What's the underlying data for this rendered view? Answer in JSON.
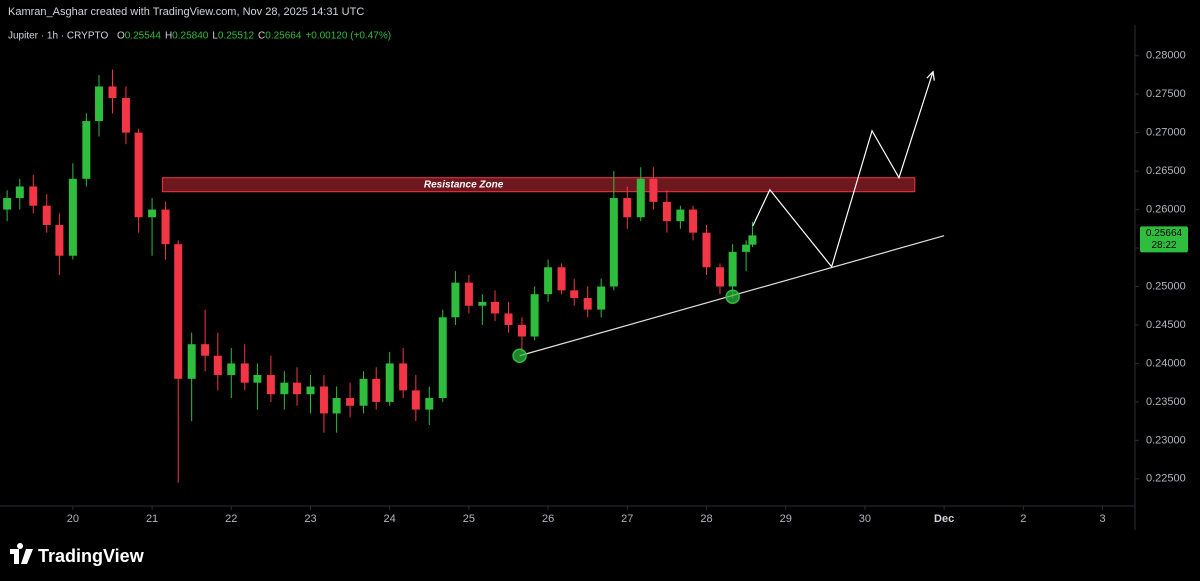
{
  "chart_data": {
    "type": "candlestick",
    "attribution": "Kamran_Asghar created with TradingView.com, Nov 28, 2025 14:31 UTC",
    "symbol": "Jupiter · 1h · CRYPTO",
    "ohlc_header": [
      {
        "label": "O",
        "value": "0.25544"
      },
      {
        "label": "H",
        "value": "0.25840"
      },
      {
        "label": "L",
        "value": "0.25512"
      },
      {
        "label": "C",
        "value": "0.25664"
      }
    ],
    "change": "+0.00120 (+0.47%)",
    "up_color": "#2ebd3c",
    "down_color": "#f23645",
    "x": [
      19.17,
      19.33,
      19.5,
      19.67,
      19.83,
      20.0,
      20.17,
      20.33,
      20.5,
      20.67,
      20.83,
      21.0,
      21.17,
      21.33,
      21.5,
      21.67,
      21.83,
      22.0,
      22.17,
      22.33,
      22.5,
      22.67,
      22.83,
      23.0,
      23.17,
      23.33,
      23.5,
      23.67,
      23.83,
      24.0,
      24.17,
      24.33,
      24.5,
      24.67,
      24.83,
      25.0,
      25.17,
      25.33,
      25.5,
      25.67,
      25.83,
      26.0,
      26.17,
      26.33,
      26.5,
      26.67,
      26.83,
      27.0,
      27.17,
      27.33,
      27.5,
      27.67,
      27.83,
      28.0,
      28.17,
      28.33,
      28.5,
      28.58
    ],
    "open": [
      0.26,
      0.2615,
      0.263,
      0.2605,
      0.258,
      0.254,
      0.264,
      0.2715,
      0.276,
      0.2745,
      0.27,
      0.259,
      0.26,
      0.2555,
      0.238,
      0.2425,
      0.241,
      0.2385,
      0.24,
      0.2375,
      0.2385,
      0.236,
      0.2375,
      0.236,
      0.237,
      0.2335,
      0.2355,
      0.2345,
      0.238,
      0.235,
      0.24,
      0.2365,
      0.234,
      0.2355,
      0.246,
      0.2505,
      0.2475,
      0.248,
      0.2465,
      0.245,
      0.2435,
      0.249,
      0.2525,
      0.2495,
      0.2485,
      0.247,
      0.25,
      0.2615,
      0.259,
      0.264,
      0.261,
      0.2585,
      0.26,
      0.257,
      0.2525,
      0.25,
      0.2545,
      0.25544
    ],
    "high": [
      0.2625,
      0.264,
      0.2645,
      0.262,
      0.2595,
      0.266,
      0.2725,
      0.2775,
      0.2782,
      0.276,
      0.2705,
      0.2615,
      0.261,
      0.256,
      0.244,
      0.247,
      0.244,
      0.242,
      0.2425,
      0.24,
      0.241,
      0.239,
      0.2395,
      0.2385,
      0.2385,
      0.237,
      0.2375,
      0.239,
      0.2395,
      0.2415,
      0.242,
      0.2385,
      0.237,
      0.247,
      0.252,
      0.2515,
      0.249,
      0.2495,
      0.248,
      0.246,
      0.25,
      0.2535,
      0.253,
      0.251,
      0.25,
      0.251,
      0.265,
      0.263,
      0.2655,
      0.2655,
      0.2625,
      0.2605,
      0.2605,
      0.258,
      0.253,
      0.2555,
      0.256,
      0.2584
    ],
    "low": [
      0.2585,
      0.26,
      0.2595,
      0.257,
      0.2515,
      0.2535,
      0.263,
      0.2695,
      0.2725,
      0.2685,
      0.257,
      0.254,
      0.2535,
      0.2245,
      0.2325,
      0.239,
      0.2365,
      0.2355,
      0.2365,
      0.234,
      0.235,
      0.234,
      0.2345,
      0.2335,
      0.231,
      0.231,
      0.233,
      0.2335,
      0.234,
      0.2345,
      0.2355,
      0.2325,
      0.232,
      0.235,
      0.245,
      0.2465,
      0.245,
      0.2455,
      0.244,
      0.2415,
      0.243,
      0.248,
      0.249,
      0.2475,
      0.246,
      0.246,
      0.2495,
      0.2575,
      0.2585,
      0.26,
      0.257,
      0.2575,
      0.256,
      0.2515,
      0.249,
      0.2485,
      0.252,
      0.25512
    ],
    "close": [
      0.2615,
      0.263,
      0.2605,
      0.258,
      0.254,
      0.264,
      0.2715,
      0.276,
      0.2745,
      0.27,
      0.259,
      0.26,
      0.2555,
      0.238,
      0.2425,
      0.241,
      0.2385,
      0.24,
      0.2375,
      0.2385,
      0.236,
      0.2375,
      0.236,
      0.237,
      0.2335,
      0.2355,
      0.2345,
      0.238,
      0.235,
      0.24,
      0.2365,
      0.234,
      0.2355,
      0.246,
      0.2505,
      0.2475,
      0.248,
      0.2465,
      0.245,
      0.2435,
      0.249,
      0.2525,
      0.2495,
      0.2485,
      0.247,
      0.25,
      0.2615,
      0.259,
      0.264,
      0.261,
      0.2585,
      0.26,
      0.257,
      0.2525,
      0.25,
      0.2545,
      0.25544,
      0.25664
    ],
    "countdown": "28:22",
    "xlim": [
      19.08,
      33.41
    ],
    "xticks": [
      20,
      21,
      22,
      23,
      24,
      25,
      26,
      27,
      28,
      29,
      30,
      {
        "value": 31,
        "label": "Dec"
      },
      {
        "value": 32,
        "label": "2"
      },
      {
        "value": 33,
        "label": "3"
      }
    ],
    "ylim": [
      0.2216,
      0.2836
    ],
    "yticks": [
      {
        "value": 0.28,
        "label": "0.28000"
      },
      {
        "value": 0.275,
        "label": "0.27500"
      },
      {
        "value": 0.27,
        "label": "0.27000"
      },
      {
        "value": 0.265,
        "label": "0.26500"
      },
      {
        "value": 0.26,
        "label": "0.26000"
      },
      {
        "value": 0.255,
        "label": "0.25500"
      },
      {
        "value": 0.25,
        "label": "0.25000"
      },
      {
        "value": 0.245,
        "label": "0.24500"
      },
      {
        "value": 0.24,
        "label": "0.24000"
      },
      {
        "value": 0.235,
        "label": "0.23500"
      },
      {
        "value": 0.23,
        "label": "0.23000"
      },
      {
        "value": 0.225,
        "label": "0.22500"
      }
    ],
    "grid": false,
    "resistance_zone": {
      "label": "Resistance Zone",
      "x": [
        21.13,
        30.63
      ],
      "y": [
        0.26414,
        0.26232
      ]
    },
    "trendline": {
      "x": [
        25.64,
        31.0
      ],
      "y": [
        0.241,
        0.2566
      ]
    },
    "touches": {
      "x": [
        25.64,
        28.33
      ],
      "y": [
        0.241,
        0.24867
      ]
    },
    "projection": {
      "x": [
        28.586,
        28.8,
        29.58,
        30.09,
        30.43,
        30.86
      ],
      "y": [
        0.2579,
        0.26258,
        0.25257,
        0.27025,
        0.26414,
        0.27792
      ]
    },
    "footer": "TradingView"
  }
}
